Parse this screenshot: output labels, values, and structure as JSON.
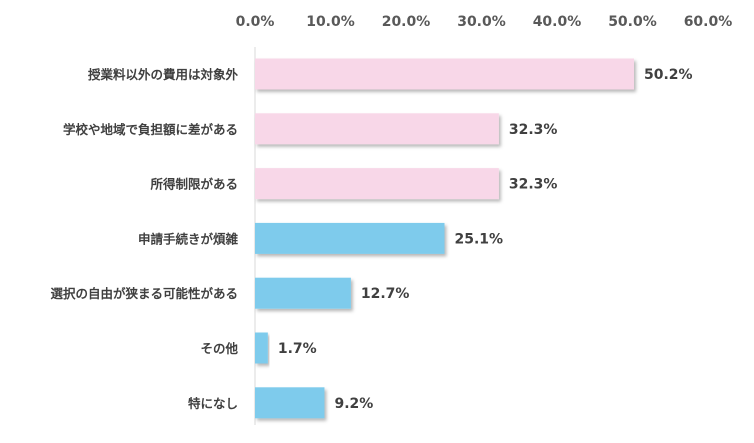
{
  "chart_data": {
    "type": "bar",
    "orientation": "horizontal",
    "categories": [
      "授業料以外の費用は対象外",
      "学校や地域で負担額に差がある",
      "所得制限がある",
      "申請手続きが煩雑",
      "選択の自由が狭まる可能性がある",
      "その他",
      "特になし"
    ],
    "values": [
      50.2,
      32.3,
      32.3,
      25.1,
      12.7,
      1.7,
      9.2
    ],
    "data_labels": [
      "50.2%",
      "32.3%",
      "32.3%",
      "25.1%",
      "12.7%",
      "1.7%",
      "9.2%"
    ],
    "xlim": [
      0,
      60
    ],
    "x_ticks": [
      0,
      10,
      20,
      30,
      40,
      50,
      60
    ],
    "x_tick_labels": [
      "0.0%",
      "10.0%",
      "20.0%",
      "30.0%",
      "40.0%",
      "50.0%",
      "60.0%"
    ],
    "axis_position": "top",
    "grid": false,
    "legend": "none",
    "bar_colors": [
      "#f8d7e8",
      "#f8d7e8",
      "#f8d7e8",
      "#7ecbec",
      "#7ecbec",
      "#7ecbec",
      "#7ecbec"
    ],
    "axis_color": "#d9d9d9",
    "shadow": true
  }
}
